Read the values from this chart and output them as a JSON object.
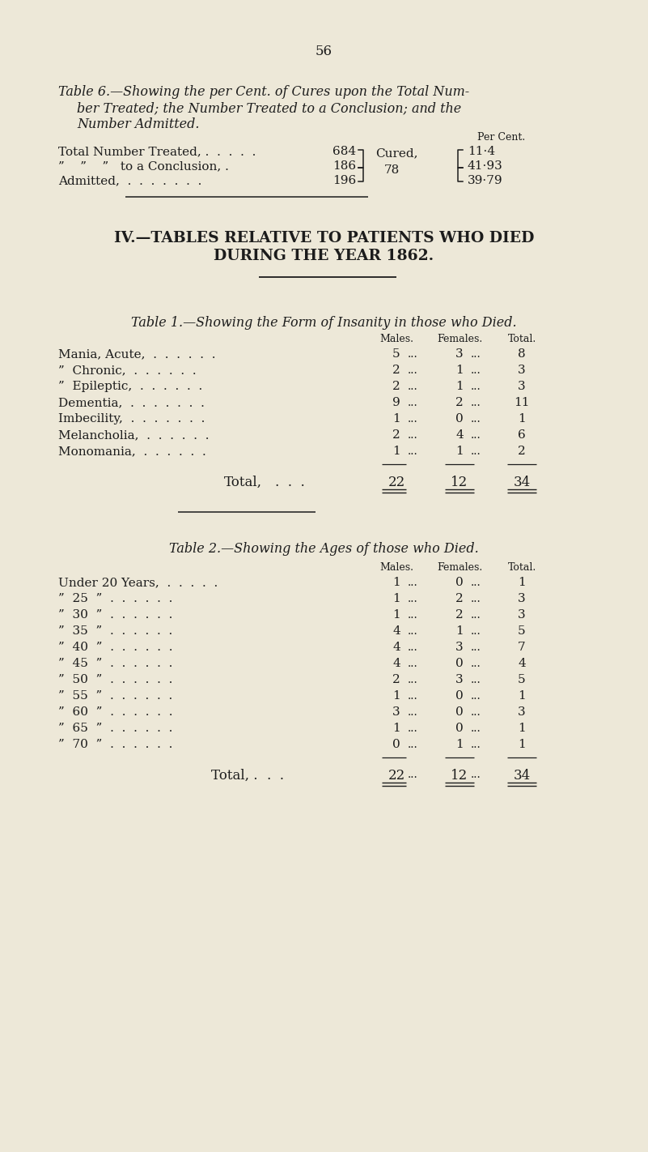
{
  "bg_color": "#ede8d8",
  "text_color": "#1c1c1c",
  "page_number": "56",
  "table6_title_line1": "Table 6.—Showing the per Cent. of Cures upon the Total Num-",
  "table6_title_line2": "ber Treated; the Number Treated to a Conclusion; and the",
  "table6_title_line3": "Number Admitted.",
  "per_cent_label": "Per Cent.",
  "table6_row1_label": "Total Number Treated, .  .  .  .  .",
  "table6_row2_label": "”    ”    ”   to a Conclusion, .",
  "table6_row3_label": "Admitted,  .  .  .  .  .  .  .",
  "table6_row1_val": "684",
  "table6_row2_val": "186",
  "table6_row3_val": "196",
  "cured_label": "Cured,",
  "cured_val": "78",
  "pct1": "11·4",
  "pct2": "41·93",
  "pct3": "39·79",
  "section_title_line1": "IV.—TABLES RELATIVE TO PATIENTS WHO DIED",
  "section_title_line2": "DURING THE YEAR 1862.",
  "table1_title": "Table 1.—Showing the Form of Insanity in those who Died.",
  "table1_col_males": "Males.",
  "table1_col_females": "Females.",
  "table1_col_total": "Total.",
  "table1_rows": [
    [
      "Mania, Acute,  .  .  .  .  .  .",
      "5",
      "3",
      "8"
    ],
    [
      "”  Chronic,  .  .  .  .  .  .",
      "2",
      "1",
      "3"
    ],
    [
      "”  Epileptic,  .  .  .  .  .  .",
      "2",
      "1",
      "3"
    ],
    [
      "Dementia,  .  .  .  .  .  .  .",
      "9",
      "2",
      "11"
    ],
    [
      "Imbecility,  .  .  .  .  .  .  .",
      "1",
      "0",
      "1"
    ],
    [
      "Melancholia,  .  .  .  .  .  .",
      "2",
      "4",
      "6"
    ],
    [
      "Monomania,  .  .  .  .  .  .",
      "1",
      "1",
      "2"
    ]
  ],
  "table1_total_label": "Total,",
  "table1_total_dots": ".  .  .",
  "table1_total_males": "22",
  "table1_total_females": "12",
  "table1_total_total": "34",
  "table2_title": "Table 2.—Showing the Ages of those who Died.",
  "table2_col_males": "Males.",
  "table2_col_females": "Females.",
  "table2_col_total": "Total.",
  "table2_rows": [
    [
      "Under 20 Years,  .  .  .  .  .",
      "1",
      "0",
      "1"
    ],
    [
      "”  25  ”  .  .  .  .  .  .",
      "1",
      "2",
      "3"
    ],
    [
      "”  30  ”  .  .  .  .  .  .",
      "1",
      "2",
      "3"
    ],
    [
      "”  35  ”  .  .  .  .  .  .",
      "4",
      "1",
      "5"
    ],
    [
      "”  40  ”  .  .  .  .  .  .",
      "4",
      "3",
      "7"
    ],
    [
      "”  45  ”  .  .  .  .  .  .",
      "4",
      "0",
      "4"
    ],
    [
      "”  50  ”  .  .  .  .  .  .",
      "2",
      "3",
      "5"
    ],
    [
      "”  55  ”  .  .  .  .  .  .",
      "1",
      "0",
      "1"
    ],
    [
      "”  60  ”  .  .  .  .  .  .",
      "3",
      "0",
      "3"
    ],
    [
      "”  65  ”  .  .  .  .  .  .",
      "1",
      "0",
      "1"
    ],
    [
      "”  70  ”  .  .  .  .  .  .",
      "0",
      "1",
      "1"
    ]
  ],
  "table2_total_label": "Total, .",
  "table2_total_dots": ".  .",
  "table2_total_males": "22",
  "table2_total_females": "12",
  "table2_total_total": "34",
  "fig_width": 8.01,
  "fig_height": 14.22,
  "dpi": 100
}
